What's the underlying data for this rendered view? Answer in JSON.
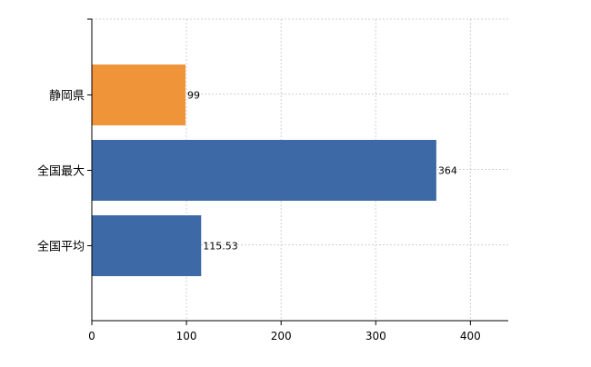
{
  "chart_data": {
    "type": "bar",
    "orientation": "horizontal",
    "categories": [
      "静岡県",
      "全国最大",
      "全国平均"
    ],
    "values": [
      99,
      364,
      115.53
    ],
    "value_labels": [
      "99",
      "364",
      "115.53"
    ],
    "xlim": [
      0,
      440
    ],
    "x_ticks": [
      0,
      100,
      200,
      300,
      400
    ],
    "x_tick_labels": [
      "0",
      "100",
      "200",
      "300",
      "400"
    ],
    "grid": true,
    "colors": {
      "highlight": "#f0943a",
      "default": "#3d6aa6",
      "grid": "#d0d0d0",
      "axis": "#000000"
    },
    "bar_colors": [
      "#f0943a",
      "#3d6aa6",
      "#3d6aa6"
    ]
  }
}
